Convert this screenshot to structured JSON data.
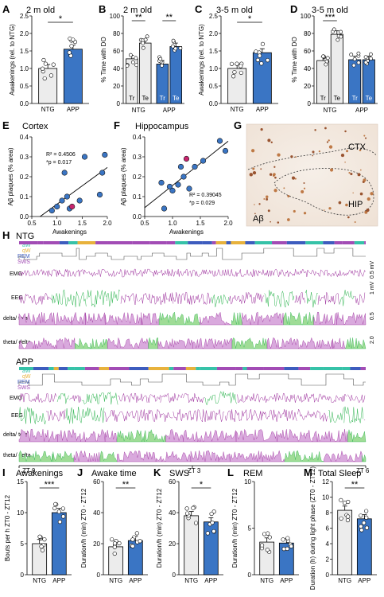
{
  "colors": {
    "ntg": "#ececec",
    "app": "#3a75c4",
    "dot_blue": "#3a75c4",
    "highlight": "#c8256e",
    "green": "#29b34c",
    "purple": "#9b2c9b",
    "lilac": "#d9a9dd",
    "lightgreen": "#9fdc96",
    "aw": "#36c2a8",
    "qw": "#e8b23c",
    "rem": "#3d5cbe",
    "sws": "#a24cb5"
  },
  "panels": {
    "A": {
      "letter": "A",
      "title": "2 m old",
      "ylabel": "Awakenings (rel. to NTG)",
      "sig": "*"
    },
    "B": {
      "letter": "B",
      "title": "2 m old",
      "ylabel": "% Time with DO",
      "sig1": "**",
      "sig2": "**"
    },
    "C": {
      "letter": "C",
      "title": "3-5 m old",
      "ylabel": "Awakenings (rel. to NTG)",
      "sig": "*"
    },
    "D": {
      "letter": "D",
      "title": "3-5 m old",
      "ylabel": "% Time with DO",
      "sig": "***"
    },
    "E": {
      "letter": "E",
      "title": "Cortex",
      "ylabel": "Aβ plaques (% area)",
      "xlabel": "Awakenings",
      "r2": "R² = 0.4506",
      "p": "*p = 0.017"
    },
    "F": {
      "letter": "F",
      "title": "Hippocampus",
      "ylabel": "Aβ plaques (% area)",
      "xlabel": "Awakenings",
      "r2": "R² = 0.39045",
      "p": "*p = 0.029"
    },
    "G": {
      "letter": "G",
      "ctx": "CTX",
      "hip": "HIP",
      "abeta": "Aβ"
    },
    "H": {
      "letter": "H",
      "ntg": "NTG",
      "app": "APP",
      "states": [
        "aW",
        "qW",
        "REM",
        "SWS"
      ],
      "rows": [
        "EMG",
        "EEG",
        "delta/ total",
        "theta/ delta"
      ],
      "zt": [
        "ZT 0",
        "ZT 3",
        "ZT 6"
      ],
      "scale_emg": "0.5 mV",
      "scale_eeg": "1 mV",
      "scale_d": "0.5",
      "scale_t": "2.0"
    },
    "I": {
      "letter": "I",
      "title": "Awakenings",
      "ylabel": "Bouts per h ZT0 - ZT12",
      "sig": "***"
    },
    "J": {
      "letter": "J",
      "title": "Awake time",
      "ylabel": "Duration/h (min) ZT0 - ZT12",
      "sig": "**"
    },
    "K": {
      "letter": "K",
      "title": "SWS",
      "ylabel": "Duration/h (min) ZT0 - ZT12",
      "sig": "*"
    },
    "L": {
      "letter": "L",
      "title": "REM",
      "ylabel": "Duration/h (min) ZT0 - ZT12"
    },
    "M": {
      "letter": "M",
      "title": "Total Sleep",
      "ylabel": "Duration (h) during light phase (ZT0 - ZT12)",
      "sig": "**"
    }
  },
  "chart_data": [
    {
      "id": "A",
      "type": "bar",
      "categories": [
        "NTG",
        "APP"
      ],
      "values": [
        1.0,
        1.55
      ],
      "ylim": [
        0,
        2.5
      ],
      "yticks": [
        0.0,
        0.5,
        1.0,
        1.5,
        2.0,
        2.5
      ]
    },
    {
      "id": "B",
      "type": "bar",
      "groups": [
        "NTG",
        "APP"
      ],
      "categories": [
        "Tr",
        "Te",
        "Tr",
        "Te"
      ],
      "values": [
        51,
        69,
        45,
        65
      ],
      "ylim": [
        0,
        100
      ],
      "yticks": [
        0,
        20,
        40,
        60,
        80,
        100
      ]
    },
    {
      "id": "C",
      "type": "bar",
      "categories": [
        "NTG",
        "APP"
      ],
      "values": [
        1.0,
        1.45
      ],
      "ylim": [
        0,
        2.5
      ],
      "yticks": [
        0.0,
        0.5,
        1.0,
        1.5,
        2.0,
        2.5
      ]
    },
    {
      "id": "D",
      "type": "bar",
      "groups": [
        "NTG",
        "APP"
      ],
      "categories": [
        "Tr",
        "Te",
        "Tr",
        "Te"
      ],
      "values": [
        49,
        79,
        50,
        50
      ],
      "ylim": [
        0,
        100
      ],
      "yticks": [
        0,
        20,
        40,
        60,
        80,
        100
      ]
    },
    {
      "id": "E",
      "type": "scatter",
      "x": [
        0.9,
        1.0,
        1.1,
        1.15,
        1.2,
        1.25,
        1.3,
        1.45,
        1.55,
        1.85,
        1.9,
        1.95
      ],
      "y": [
        0.03,
        0.05,
        0.08,
        0.22,
        0.1,
        0.04,
        0.05,
        0.08,
        0.3,
        0.11,
        0.22,
        0.31
      ],
      "highlight_index": 6,
      "xlim": [
        0.5,
        2.0
      ],
      "ylim": [
        0.0,
        0.4
      ],
      "xticks": [
        0.5,
        1.0,
        1.5,
        2.0
      ],
      "yticks": [
        0.0,
        0.1,
        0.2,
        0.3,
        0.4
      ]
    },
    {
      "id": "F",
      "type": "scatter",
      "x": [
        0.8,
        0.85,
        0.95,
        1.0,
        1.1,
        1.15,
        1.2,
        1.25,
        1.3,
        1.4,
        1.55,
        1.85,
        1.95
      ],
      "y": [
        0.17,
        0.04,
        0.15,
        0.13,
        0.16,
        0.25,
        0.2,
        0.29,
        0.14,
        0.25,
        0.28,
        0.38,
        0.33
      ],
      "highlight_index": 7,
      "xlim": [
        0.5,
        2.0
      ],
      "ylim": [
        0.0,
        0.4
      ],
      "xticks": [
        0.5,
        1.0,
        1.5,
        2.0
      ],
      "yticks": [
        0.0,
        0.1,
        0.2,
        0.3,
        0.4
      ]
    },
    {
      "id": "I",
      "type": "bar",
      "categories": [
        "NTG",
        "APP"
      ],
      "values": [
        5,
        10
      ],
      "ylim": [
        0,
        15
      ],
      "yticks": [
        0,
        5,
        10,
        15
      ]
    },
    {
      "id": "J",
      "type": "bar",
      "categories": [
        "NTG",
        "APP"
      ],
      "values": [
        18,
        22
      ],
      "ylim": [
        0,
        60
      ],
      "yticks": [
        0,
        20,
        40,
        60
      ]
    },
    {
      "id": "K",
      "type": "bar",
      "categories": [
        "NTG",
        "APP"
      ],
      "values": [
        38,
        34
      ],
      "ylim": [
        0,
        60
      ],
      "yticks": [
        0,
        20,
        40,
        60
      ]
    },
    {
      "id": "L",
      "type": "bar",
      "categories": [
        "NTG",
        "APP"
      ],
      "values": [
        3.5,
        3.4
      ],
      "ylim": [
        0,
        10
      ],
      "yticks": [
        0,
        5,
        10
      ]
    },
    {
      "id": "M",
      "type": "bar",
      "categories": [
        "NTG",
        "APP"
      ],
      "values": [
        8.3,
        7.2
      ],
      "ylim": [
        0,
        12
      ],
      "yticks": [
        0,
        2,
        4,
        6,
        8,
        10,
        12
      ]
    }
  ]
}
